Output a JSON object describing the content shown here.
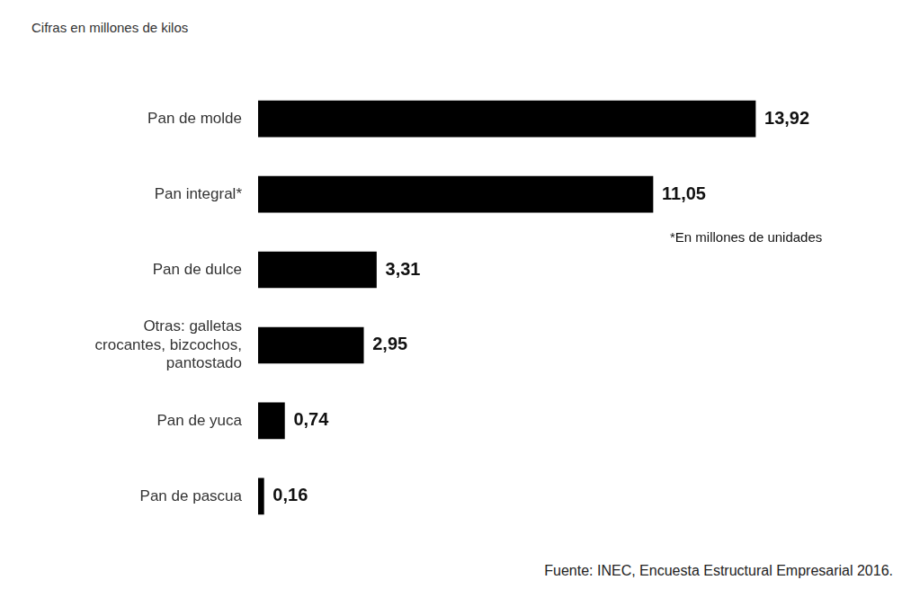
{
  "chart_data": {
    "type": "bar",
    "orientation": "horizontal",
    "subtitle": "Cifras en millones de kilos",
    "categories": [
      "Pan de molde",
      "Pan integral*",
      "Pan de dulce",
      "Otras: galletas crocantes, bizcochos, pantostado",
      "Pan de yuca",
      "Pan de pascua"
    ],
    "values": [
      13.92,
      11.05,
      3.31,
      2.95,
      0.74,
      0.16
    ],
    "value_labels": [
      "13,92",
      "11,05",
      "3,31",
      "2,95",
      "0,74",
      "0,16"
    ],
    "color": "#000000",
    "data_labels": true,
    "tick_labels": "y",
    "grid": false,
    "annotations": [
      "*En millones de unidades",
      "Fuente: INEC, Encuesta Estructural Empresarial 2016."
    ]
  }
}
